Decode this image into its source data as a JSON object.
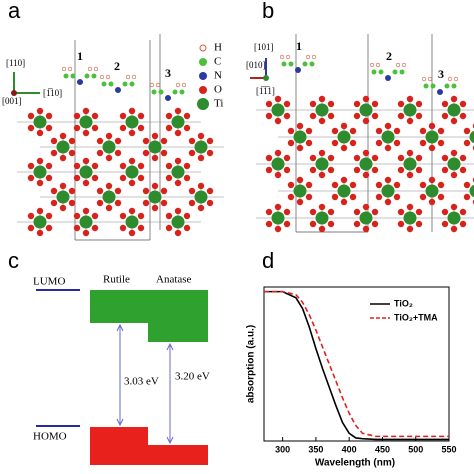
{
  "panels": {
    "a": {
      "label": "a",
      "legend": [
        "H",
        "C",
        "N",
        "O",
        "Ti"
      ],
      "axes": [
        "[110]",
        "[001]",
        "[1̅10]"
      ],
      "sites": [
        "1",
        "2",
        "3"
      ]
    },
    "b": {
      "label": "b",
      "axes": [
        "[101]",
        "[010]",
        "[1̅1̅1]"
      ],
      "sites": [
        "1",
        "2",
        "3"
      ]
    },
    "c": {
      "label": "c",
      "lumo": "LUMO",
      "homo": "HOMO",
      "rutile": "Rutile",
      "anatase": "Anatase",
      "gap_rutile": "3.03 eV",
      "gap_anatase": "3.20 eV"
    },
    "d": {
      "label": "d"
    }
  },
  "chart_data": {
    "type": "line",
    "x_label": "Wavelength (nm)",
    "y_label": "absorption (a.u.)",
    "xlim": [
      272,
      550
    ],
    "xticks": [
      300,
      350,
      400,
      450,
      500,
      550
    ],
    "ylim": [
      0,
      1
    ],
    "x": [
      272,
      300,
      320,
      330,
      340,
      350,
      360,
      370,
      380,
      390,
      400,
      410,
      420,
      440,
      470,
      500,
      550
    ],
    "series": [
      {
        "name": "TiO₂",
        "color": "#000000",
        "dash": false,
        "values": [
          0.97,
          0.97,
          0.93,
          0.86,
          0.74,
          0.6,
          0.47,
          0.35,
          0.23,
          0.12,
          0.05,
          0.02,
          0.015,
          0.01,
          0.01,
          0.01,
          0.01
        ]
      },
      {
        "name": "TiO₂+TMA",
        "color": "#e0201b",
        "dash": true,
        "values": [
          0.97,
          0.97,
          0.95,
          0.9,
          0.82,
          0.72,
          0.61,
          0.5,
          0.39,
          0.28,
          0.18,
          0.1,
          0.05,
          0.03,
          0.03,
          0.03,
          0.03
        ]
      }
    ]
  }
}
